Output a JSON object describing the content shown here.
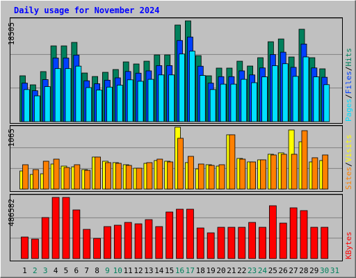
{
  "chart_data": {
    "type": "bar",
    "title": "Daily usage for November 2024",
    "categories": [
      "1",
      "2",
      "3",
      "4",
      "5",
      "6",
      "7",
      "8",
      "9",
      "10",
      "11",
      "12",
      "13",
      "14",
      "15",
      "16",
      "17",
      "18",
      "19",
      "20",
      "21",
      "22",
      "23",
      "24",
      "25",
      "26",
      "27",
      "28",
      "29",
      "30",
      "31"
    ],
    "category_colors": [
      "#000000",
      "#00805c",
      "#00805c",
      "#000000",
      "#000000",
      "#000000",
      "#000000",
      "#000000",
      "#00805c",
      "#00805c",
      "#000000",
      "#000000",
      "#000000",
      "#000000",
      "#000000",
      "#00805c",
      "#00805c",
      "#000000",
      "#000000",
      "#000000",
      "#000000",
      "#000000",
      "#00805c",
      "#00805c",
      "#000000",
      "#000000",
      "#000000",
      "#000000",
      "#000000",
      "#00805c",
      "#00805c"
    ],
    "legend_separator": "/",
    "panels": [
      {
        "ylim": [
          0,
          18505
        ],
        "yticks": [
          18505
        ],
        "series": [
          {
            "name": "Hits",
            "color": "#00805c",
            "values": [
              8420,
              6760,
              9190,
              13910,
              13910,
              14550,
              8930,
              8290,
              9060,
              9570,
              10970,
              10590,
              11100,
              12250,
              12250,
              17740,
              18505,
              12120,
              8420,
              9830,
              9830,
              11100,
              10210,
              11740,
              14670,
              15180,
              11870,
              16970,
              11740,
              9700,
              0
            ]
          },
          {
            "name": "Files",
            "color": "#0040ff",
            "values": [
              7070,
              5680,
              7720,
              11680,
              11680,
              12220,
              7500,
              6960,
              7610,
              8040,
              9210,
              8900,
              9320,
              10290,
              10290,
              14900,
              15540,
              10180,
              7070,
              8260,
              8260,
              9320,
              8580,
              9860,
              12320,
              12750,
              9970,
              14250,
              9860,
              8150,
              0
            ]
          },
          {
            "name": "Pages",
            "color": "#00e0ff",
            "values": [
              5890,
              4730,
              6430,
              9740,
              9740,
              10190,
              6250,
              5800,
              6340,
              6700,
              7680,
              7410,
              7770,
              8580,
              8580,
              12420,
              12950,
              8480,
              5890,
              6880,
              6880,
              7770,
              7150,
              8220,
              10270,
              10630,
              8310,
              11880,
              8220,
              6790,
              0
            ]
          }
        ]
      },
      {
        "ylim": [
          0,
          1065
        ],
        "yticks": [
          1065
        ],
        "series": [
          {
            "name": "Visits",
            "color": "#ffff00",
            "values": [
              311,
              251,
              263,
              431,
              395,
              383,
              335,
              551,
              479,
              455,
              419,
              359,
              443,
              491,
              479,
              1065,
              455,
              347,
              419,
              395,
              934,
              527,
              467,
              503,
              599,
              623,
              1017,
              814,
              467,
              491,
              0
            ]
          },
          {
            "name": "Sites",
            "color": "#ff8000",
            "values": [
              419,
              335,
              479,
              515,
              371,
              419,
              323,
              551,
              455,
              443,
              407,
              359,
              455,
              515,
              467,
              874,
              563,
              431,
              407,
              419,
              934,
              515,
              467,
              503,
              587,
              599,
              599,
              1005,
              539,
              587,
              0
            ]
          }
        ]
      },
      {
        "ylim": [
          0,
          486582
        ],
        "yticks": [
          486582
        ],
        "series": [
          {
            "name": "KBytes",
            "color": "#ff0000",
            "values": [
              171400,
              154800,
              326200,
              486582,
              486500,
              387000,
              232200,
              160300,
              254300,
              265400,
              287500,
              276400,
              309600,
              254300,
              370400,
              392600,
              392600,
              243300,
              204600,
              248800,
              248800,
              248800,
              287500,
              248800,
              420200,
              282000,
              403600,
              381500,
              248800,
              248800,
              0
            ]
          }
        ]
      }
    ]
  }
}
